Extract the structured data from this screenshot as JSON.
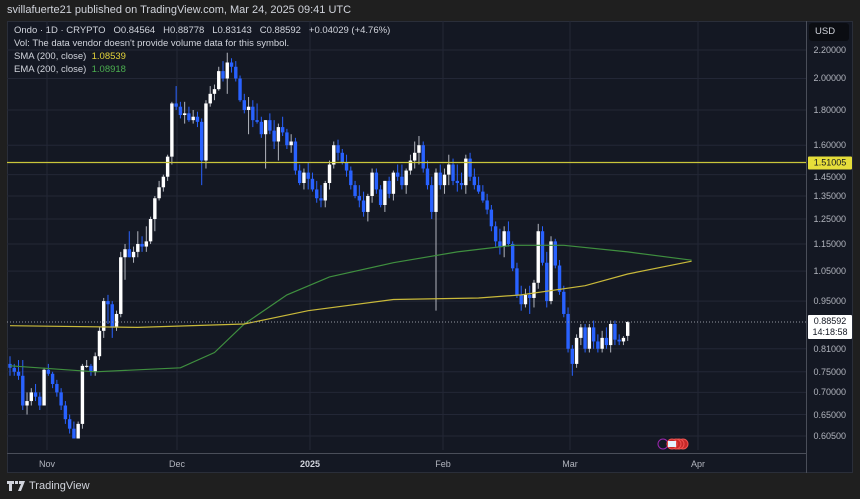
{
  "publisher": "svillafuerte21 published on TradingView.com, Mar 24, 2025 09:41 UTC",
  "legend": {
    "symbol_line": "Ondo · 1D · CRYPTO",
    "open": "O0.84564",
    "high": "H0.88778",
    "low": "L0.83143",
    "close": "C0.88592",
    "change": "+0.04029 (+4.76%)",
    "vol_note": "Vol: The data vendor doesn't provide volume data for this symbol.",
    "sma_label": "SMA (200, close)",
    "sma_value": "1.08539",
    "ema_label": "EMA (200, close)",
    "ema_value": "1.08918"
  },
  "currency": "USD",
  "price_tags": {
    "horizontal_line": "1.51005",
    "last_price": "0.88592",
    "countdown": "14:18:58"
  },
  "footer": {
    "brand": "TradingView"
  },
  "colors": {
    "up": "#ffffff",
    "down": "#2962ff",
    "sma": "#c9b93a",
    "ema": "#3f8f3f",
    "hline": "#c9c53a",
    "grid": "#232736",
    "background": "#141823"
  },
  "chart_data": {
    "type": "candlestick",
    "title": "Ondo · 1D · CRYPTO",
    "scale": "log",
    "xlabel": "",
    "ylabel": "USD",
    "x_ticks": [
      "Nov",
      "Dec",
      "2025",
      "Feb",
      "Mar",
      "Apr"
    ],
    "y_ticks": [
      "2.20000",
      "2.00000",
      "1.80000",
      "1.60000",
      "1.45000",
      "1.35000",
      "1.25000",
      "1.15000",
      "1.05000",
      "0.95000",
      "0.81000",
      "0.75000",
      "0.70000",
      "0.65000",
      "0.60500"
    ],
    "ylim": [
      0.58,
      2.3
    ],
    "horizontal_line": 1.51005,
    "last": {
      "open": 0.84564,
      "high": 0.88778,
      "low": 0.83143,
      "close": 0.88592,
      "change": 0.04029,
      "change_pct": 4.76
    },
    "sma_200_last": 1.08539,
    "ema_200_last": 1.08918,
    "candles_ohlc": [
      [
        0.77,
        0.79,
        0.74,
        0.76
      ],
      [
        0.76,
        0.77,
        0.74,
        0.75
      ],
      [
        0.75,
        0.78,
        0.73,
        0.74
      ],
      [
        0.74,
        0.78,
        0.66,
        0.67
      ],
      [
        0.67,
        0.7,
        0.65,
        0.68
      ],
      [
        0.68,
        0.71,
        0.67,
        0.7
      ],
      [
        0.7,
        0.72,
        0.68,
        0.69
      ],
      [
        0.69,
        0.7,
        0.66,
        0.67
      ],
      [
        0.67,
        0.76,
        0.67,
        0.755
      ],
      [
        0.755,
        0.77,
        0.74,
        0.745
      ],
      [
        0.745,
        0.75,
        0.71,
        0.72
      ],
      [
        0.72,
        0.73,
        0.69,
        0.7
      ],
      [
        0.7,
        0.71,
        0.66,
        0.67
      ],
      [
        0.67,
        0.68,
        0.63,
        0.64
      ],
      [
        0.64,
        0.65,
        0.61,
        0.62
      ],
      [
        0.62,
        0.635,
        0.6,
        0.6
      ],
      [
        0.6,
        0.635,
        0.6,
        0.63
      ],
      [
        0.63,
        0.77,
        0.62,
        0.765
      ],
      [
        0.765,
        0.78,
        0.76,
        0.765
      ],
      [
        0.765,
        0.77,
        0.74,
        0.75
      ],
      [
        0.75,
        0.8,
        0.74,
        0.79
      ],
      [
        0.79,
        0.87,
        0.78,
        0.86
      ],
      [
        0.86,
        0.96,
        0.84,
        0.95
      ],
      [
        0.95,
        0.97,
        0.88,
        0.94
      ],
      [
        0.94,
        0.95,
        0.84,
        0.87
      ],
      [
        0.87,
        0.92,
        0.86,
        0.91
      ],
      [
        0.91,
        1.12,
        0.9,
        1.1
      ],
      [
        1.1,
        1.15,
        1.02,
        1.13
      ],
      [
        1.13,
        1.2,
        1.1,
        1.1
      ],
      [
        1.1,
        1.14,
        1.08,
        1.12
      ],
      [
        1.12,
        1.2,
        1.1,
        1.15
      ],
      [
        1.15,
        1.18,
        1.12,
        1.14
      ],
      [
        1.14,
        1.22,
        1.12,
        1.16
      ],
      [
        1.16,
        1.26,
        1.15,
        1.25
      ],
      [
        1.25,
        1.35,
        1.2,
        1.34
      ],
      [
        1.34,
        1.42,
        1.33,
        1.39
      ],
      [
        1.39,
        1.45,
        1.37,
        1.44
      ],
      [
        1.44,
        1.55,
        1.42,
        1.54
      ],
      [
        1.54,
        1.85,
        1.5,
        1.84
      ],
      [
        1.84,
        1.95,
        1.8,
        1.82
      ],
      [
        1.82,
        1.85,
        1.75,
        1.77
      ],
      [
        1.77,
        1.85,
        1.72,
        1.78
      ],
      [
        1.78,
        1.82,
        1.73,
        1.74
      ],
      [
        1.74,
        1.8,
        1.72,
        1.76
      ],
      [
        1.76,
        1.79,
        1.7,
        1.73
      ],
      [
        1.73,
        1.75,
        1.4,
        1.52
      ],
      [
        1.52,
        1.86,
        1.48,
        1.84
      ],
      [
        1.84,
        1.95,
        1.82,
        1.9
      ],
      [
        1.9,
        1.96,
        1.86,
        1.93
      ],
      [
        1.93,
        2.08,
        1.92,
        2.05
      ],
      [
        2.05,
        2.12,
        1.98,
        2.0
      ],
      [
        2.0,
        2.18,
        1.9,
        2.11
      ],
      [
        2.11,
        2.14,
        2.04,
        2.08
      ],
      [
        2.08,
        2.12,
        1.98,
        2.0
      ],
      [
        2.0,
        2.02,
        1.85,
        1.86
      ],
      [
        1.86,
        1.9,
        1.78,
        1.8
      ],
      [
        1.8,
        1.88,
        1.66,
        1.82
      ],
      [
        1.82,
        1.86,
        1.7,
        1.74
      ],
      [
        1.74,
        1.84,
        1.72,
        1.73
      ],
      [
        1.73,
        1.76,
        1.64,
        1.66
      ],
      [
        1.66,
        1.74,
        1.48,
        1.74
      ],
      [
        1.74,
        1.78,
        1.66,
        1.68
      ],
      [
        1.68,
        1.74,
        1.58,
        1.62
      ],
      [
        1.62,
        1.72,
        1.52,
        1.7
      ],
      [
        1.7,
        1.76,
        1.65,
        1.67
      ],
      [
        1.67,
        1.69,
        1.58,
        1.6
      ],
      [
        1.6,
        1.66,
        1.56,
        1.62
      ],
      [
        1.62,
        1.64,
        1.45,
        1.47
      ],
      [
        1.47,
        1.5,
        1.4,
        1.41
      ],
      [
        1.41,
        1.48,
        1.38,
        1.46
      ],
      [
        1.46,
        1.51,
        1.38,
        1.43
      ],
      [
        1.43,
        1.46,
        1.37,
        1.38
      ],
      [
        1.38,
        1.42,
        1.32,
        1.34
      ],
      [
        1.34,
        1.4,
        1.3,
        1.33
      ],
      [
        1.33,
        1.42,
        1.3,
        1.41
      ],
      [
        1.41,
        1.52,
        1.38,
        1.5
      ],
      [
        1.5,
        1.62,
        1.48,
        1.6
      ],
      [
        1.6,
        1.63,
        1.52,
        1.56
      ],
      [
        1.56,
        1.58,
        1.5,
        1.51
      ],
      [
        1.51,
        1.55,
        1.44,
        1.47
      ],
      [
        1.47,
        1.49,
        1.38,
        1.4
      ],
      [
        1.4,
        1.42,
        1.34,
        1.35
      ],
      [
        1.35,
        1.4,
        1.3,
        1.33
      ],
      [
        1.33,
        1.37,
        1.26,
        1.28
      ],
      [
        1.28,
        1.36,
        1.24,
        1.35
      ],
      [
        1.35,
        1.48,
        1.32,
        1.46
      ],
      [
        1.46,
        1.48,
        1.36,
        1.38
      ],
      [
        1.38,
        1.4,
        1.3,
        1.31
      ],
      [
        1.31,
        1.42,
        1.28,
        1.42
      ],
      [
        1.42,
        1.44,
        1.34,
        1.36
      ],
      [
        1.36,
        1.47,
        1.33,
        1.46
      ],
      [
        1.46,
        1.5,
        1.42,
        1.44
      ],
      [
        1.44,
        1.5,
        1.38,
        1.4
      ],
      [
        1.4,
        1.48,
        1.36,
        1.47
      ],
      [
        1.47,
        1.55,
        1.45,
        1.52
      ],
      [
        1.52,
        1.62,
        1.48,
        1.56
      ],
      [
        1.56,
        1.65,
        1.5,
        1.6
      ],
      [
        1.6,
        1.62,
        1.46,
        1.48
      ],
      [
        1.48,
        1.52,
        1.38,
        1.4
      ],
      [
        1.4,
        1.44,
        1.25,
        1.28
      ],
      [
        1.28,
        1.48,
        0.92,
        1.46
      ],
      [
        1.46,
        1.5,
        1.38,
        1.4
      ],
      [
        1.4,
        1.48,
        1.36,
        1.45
      ],
      [
        1.45,
        1.55,
        1.4,
        1.5
      ],
      [
        1.5,
        1.53,
        1.4,
        1.42
      ],
      [
        1.42,
        1.5,
        1.37,
        1.41
      ],
      [
        1.41,
        1.46,
        1.38,
        1.4
      ],
      [
        1.4,
        1.55,
        1.36,
        1.53
      ],
      [
        1.53,
        1.56,
        1.42,
        1.44
      ],
      [
        1.44,
        1.48,
        1.38,
        1.4
      ],
      [
        1.4,
        1.44,
        1.36,
        1.37
      ],
      [
        1.37,
        1.4,
        1.32,
        1.33
      ],
      [
        1.33,
        1.36,
        1.27,
        1.29
      ],
      [
        1.29,
        1.31,
        1.2,
        1.22
      ],
      [
        1.22,
        1.24,
        1.14,
        1.16
      ],
      [
        1.16,
        1.21,
        1.11,
        1.14
      ],
      [
        1.14,
        1.22,
        1.1,
        1.2
      ],
      [
        1.2,
        1.24,
        1.14,
        1.15
      ],
      [
        1.15,
        1.16,
        1.05,
        1.06
      ],
      [
        1.06,
        1.08,
        0.96,
        0.97
      ],
      [
        0.97,
        1.0,
        0.92,
        0.94
      ],
      [
        0.94,
        0.99,
        0.93,
        0.97
      ],
      [
        0.97,
        1.0,
        0.91,
        0.96
      ],
      [
        0.96,
        1.02,
        0.93,
        1.01
      ],
      [
        1.01,
        1.23,
        0.99,
        1.2
      ],
      [
        1.2,
        1.22,
        1.07,
        1.08
      ],
      [
        1.08,
        1.12,
        0.93,
        0.95
      ],
      [
        0.95,
        1.18,
        0.94,
        1.16
      ],
      [
        1.16,
        1.17,
        1.06,
        1.07
      ],
      [
        1.07,
        1.09,
        0.97,
        0.98
      ],
      [
        0.98,
        1.0,
        0.9,
        0.91
      ],
      [
        0.91,
        0.93,
        0.8,
        0.81
      ],
      [
        0.81,
        0.82,
        0.74,
        0.77
      ],
      [
        0.77,
        0.85,
        0.76,
        0.84
      ],
      [
        0.84,
        0.88,
        0.82,
        0.87
      ],
      [
        0.87,
        0.88,
        0.8,
        0.81
      ],
      [
        0.81,
        0.88,
        0.8,
        0.87
      ],
      [
        0.87,
        0.89,
        0.81,
        0.83
      ],
      [
        0.83,
        0.85,
        0.8,
        0.81
      ],
      [
        0.81,
        0.86,
        0.8,
        0.84
      ],
      [
        0.84,
        0.87,
        0.81,
        0.82
      ],
      [
        0.82,
        0.89,
        0.8,
        0.88
      ],
      [
        0.88,
        0.89,
        0.82,
        0.835
      ],
      [
        0.835,
        0.85,
        0.82,
        0.83
      ],
      [
        0.83,
        0.845,
        0.82,
        0.84
      ],
      [
        0.84564,
        0.88778,
        0.83143,
        0.88592
      ]
    ],
    "sma_200_points": [
      [
        0,
        0.875
      ],
      [
        30,
        0.87
      ],
      [
        55,
        0.88
      ],
      [
        70,
        0.92
      ],
      [
        90,
        0.955
      ],
      [
        110,
        0.96
      ],
      [
        120,
        0.97
      ],
      [
        135,
        1.0
      ],
      [
        145,
        1.04
      ],
      [
        160,
        1.08539
      ]
    ],
    "ema_200_points": [
      [
        0,
        0.765
      ],
      [
        20,
        0.75
      ],
      [
        40,
        0.76
      ],
      [
        48,
        0.8
      ],
      [
        55,
        0.88
      ],
      [
        65,
        0.97
      ],
      [
        75,
        1.03
      ],
      [
        90,
        1.08
      ],
      [
        105,
        1.12
      ],
      [
        118,
        1.145
      ],
      [
        130,
        1.145
      ],
      [
        145,
        1.12
      ],
      [
        160,
        1.08918
      ]
    ]
  }
}
